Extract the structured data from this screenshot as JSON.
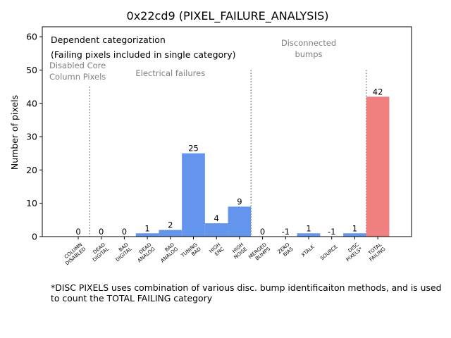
{
  "chart_data": {
    "type": "bar",
    "title": "0x22cd9 (PIXEL_FAILURE_ANALYSIS)",
    "xlabel": "",
    "ylabel": "Number of pixels",
    "ylim": [
      0,
      63
    ],
    "yticks": [
      0,
      10,
      20,
      30,
      40,
      50,
      60
    ],
    "grid": false,
    "categories": [
      "COLUMN\nDISABLED",
      "DEAD\nDIGITAL",
      "BAD\nDIGITAL",
      "DEAD\nANALOG",
      "BAD\nANALOG",
      "TUNING\nBAD",
      "HIGH\nENC",
      "HIGH\nNOISE",
      "MERGED\nBUMPS",
      "ZERO\nBIAS",
      "XTALK",
      "SOURCE",
      "DISC\nPIXELS*",
      "TOTAL\nFAILING"
    ],
    "values": [
      0,
      0,
      0,
      1,
      2,
      25,
      4,
      9,
      0,
      -1,
      1,
      -1,
      1,
      42
    ],
    "bar_colors": [
      "#6495ed",
      "#6495ed",
      "#6495ed",
      "#6495ed",
      "#6495ed",
      "#6495ed",
      "#6495ed",
      "#6495ed",
      "#6495ed",
      "#6495ed",
      "#6495ed",
      "#6495ed",
      "#6495ed",
      "#f08080"
    ],
    "separators": [
      {
        "after_category": 0,
        "top_value": 45
      },
      {
        "after_category": 7,
        "top_value": 50
      },
      {
        "after_category": 12,
        "top_value": 50
      }
    ],
    "group_labels": [
      {
        "text": "Disabled Core\nColumn Pixels",
        "color": "#808080"
      },
      {
        "text": "Electrical failures",
        "color": "#808080"
      },
      {
        "text": "Disconnected\nbumps",
        "color": "#808080"
      }
    ],
    "annotations": [
      "Dependent categorization",
      "(Failing pixels included in single category)"
    ]
  },
  "footnote": "*DISC PIXELS uses combination of various disc. bump identificaiton methods, and is used to count the TOTAL FAILING category"
}
